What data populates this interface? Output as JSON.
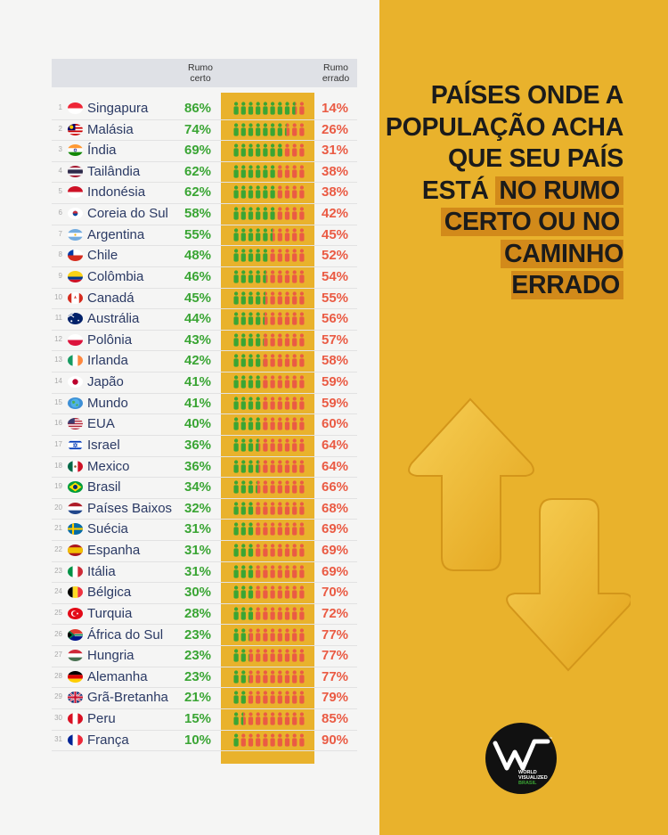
{
  "headers": {
    "right": "Rumo certo",
    "wrong": "Rumo errado"
  },
  "title": {
    "line1": "PAÍSES ONDE A",
    "line2": "POPULAÇÃO ACHA",
    "line3": "QUE SEU PAÍS",
    "line4a": "ESTÁ ",
    "line4b": "NO RUMO",
    "line5": "CERTO OU NO",
    "line6": "CAMINHO ERRADO"
  },
  "logo": {
    "line1": "WORLD",
    "line2": "VISUALIZED",
    "line3": "BRASIL",
    "tm": "™"
  },
  "colors": {
    "right": "#3aa534",
    "wrong": "#ea5b44",
    "accent": "#e9b22c",
    "highlight": "#d28a1a"
  },
  "chart_data": {
    "type": "table",
    "columns": [
      "Rumo certo",
      "Rumo errado"
    ],
    "rows": [
      {
        "rank": "1",
        "country": "Singapura",
        "right": "86%",
        "wrong": "14%",
        "flag": "sg"
      },
      {
        "rank": "2",
        "country": "Malásia",
        "right": "74%",
        "wrong": "26%",
        "flag": "my"
      },
      {
        "rank": "3",
        "country": "Índia",
        "right": "69%",
        "wrong": "31%",
        "flag": "in"
      },
      {
        "rank": "4",
        "country": "Tailândia",
        "right": "62%",
        "wrong": "38%",
        "flag": "th"
      },
      {
        "rank": "5",
        "country": "Indonésia",
        "right": "62%",
        "wrong": "38%",
        "flag": "id"
      },
      {
        "rank": "6",
        "country": "Coreia do Sul",
        "right": "58%",
        "wrong": "42%",
        "flag": "kr"
      },
      {
        "rank": "7",
        "country": "Argentina",
        "right": "55%",
        "wrong": "45%",
        "flag": "ar"
      },
      {
        "rank": "8",
        "country": "Chile",
        "right": "48%",
        "wrong": "52%",
        "flag": "cl"
      },
      {
        "rank": "9",
        "country": "Colômbia",
        "right": "46%",
        "wrong": "54%",
        "flag": "co"
      },
      {
        "rank": "10",
        "country": "Canadá",
        "right": "45%",
        "wrong": "55%",
        "flag": "ca"
      },
      {
        "rank": "11",
        "country": "Austrália",
        "right": "44%",
        "wrong": "56%",
        "flag": "au"
      },
      {
        "rank": "12",
        "country": "Polônia",
        "right": "43%",
        "wrong": "57%",
        "flag": "pl"
      },
      {
        "rank": "13",
        "country": "Irlanda",
        "right": "42%",
        "wrong": "58%",
        "flag": "ie"
      },
      {
        "rank": "14",
        "country": "Japão",
        "right": "41%",
        "wrong": "59%",
        "flag": "jp"
      },
      {
        "rank": "15",
        "country": "Mundo",
        "right": "41%",
        "wrong": "59%",
        "flag": "world"
      },
      {
        "rank": "16",
        "country": "EUA",
        "right": "40%",
        "wrong": "60%",
        "flag": "us"
      },
      {
        "rank": "17",
        "country": "Israel",
        "right": "36%",
        "wrong": "64%",
        "flag": "il"
      },
      {
        "rank": "18",
        "country": "Mexico",
        "right": "36%",
        "wrong": "64%",
        "flag": "mx"
      },
      {
        "rank": "19",
        "country": "Brasil",
        "right": "34%",
        "wrong": "66%",
        "flag": "br"
      },
      {
        "rank": "20",
        "country": "Países Baixos",
        "right": "32%",
        "wrong": "68%",
        "flag": "nl"
      },
      {
        "rank": "21",
        "country": "Suécia",
        "right": "31%",
        "wrong": "69%",
        "flag": "se"
      },
      {
        "rank": "22",
        "country": "Espanha",
        "right": "31%",
        "wrong": "69%",
        "flag": "es"
      },
      {
        "rank": "23",
        "country": "Itália",
        "right": "31%",
        "wrong": "69%",
        "flag": "it"
      },
      {
        "rank": "24",
        "country": "Bélgica",
        "right": "30%",
        "wrong": "70%",
        "flag": "be"
      },
      {
        "rank": "25",
        "country": "Turquia",
        "right": "28%",
        "wrong": "72%",
        "flag": "tr"
      },
      {
        "rank": "26",
        "country": "África do Sul",
        "right": "23%",
        "wrong": "77%",
        "flag": "za"
      },
      {
        "rank": "27",
        "country": "Hungria",
        "right": "23%",
        "wrong": "77%",
        "flag": "hu"
      },
      {
        "rank": "28",
        "country": "Alemanha",
        "right": "23%",
        "wrong": "77%",
        "flag": "de"
      },
      {
        "rank": "29",
        "country": "Grã-Bretanha",
        "right": "21%",
        "wrong": "79%",
        "flag": "gb"
      },
      {
        "rank": "30",
        "country": "Peru",
        "right": "15%",
        "wrong": "85%",
        "flag": "pe"
      },
      {
        "rank": "31",
        "country": "França",
        "right": "10%",
        "wrong": "90%",
        "flag": "fr"
      }
    ]
  }
}
